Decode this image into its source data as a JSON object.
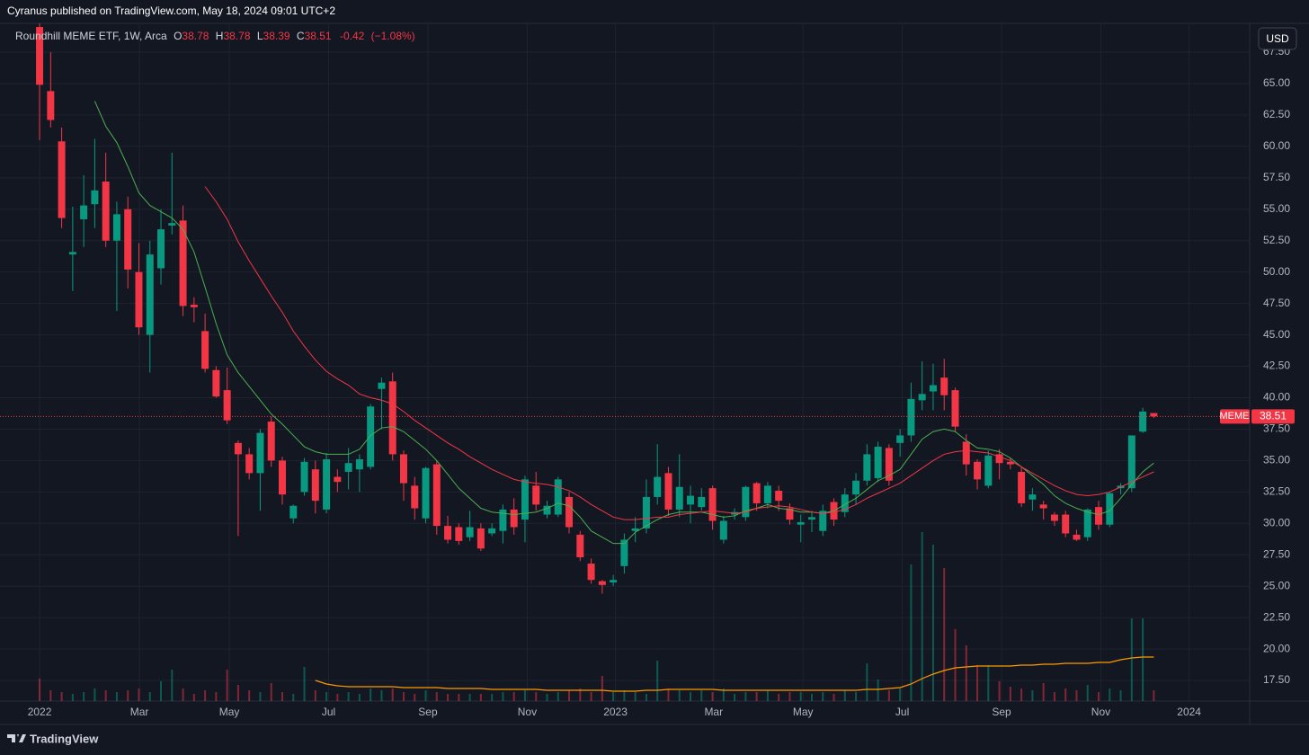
{
  "header": "Cyranus published on TradingView.com, May 18, 2024 09:01 UTC+2",
  "footer": "TradingView",
  "currency_button": "USD",
  "chart_data": {
    "type": "candlestick",
    "symbol": "MEME",
    "legend_name": "Roundhill MEME ETF, 1W, Arca",
    "legend_letters": [
      "O",
      "H",
      "L",
      "C"
    ],
    "change": -0.42,
    "change_pct": {
      "value": -1.08,
      "label": "(−1.08%)"
    },
    "up_color": "#089981",
    "down_color": "#f23645",
    "grid": true,
    "categories": [
      null,
      null,
      null,
      null,
      null,
      null,
      null,
      null,
      null,
      null,
      null,
      null,
      null,
      null,
      null,
      null,
      null,
      null,
      null,
      null,
      null,
      null,
      null,
      null,
      null,
      null,
      null,
      null,
      null,
      null,
      null,
      null,
      null,
      null,
      null,
      null,
      null,
      null,
      null,
      null,
      null,
      null,
      null,
      null,
      null,
      null,
      null,
      null,
      null,
      null,
      null,
      null,
      null,
      null,
      null,
      null,
      null,
      null,
      null,
      null,
      null,
      null,
      null,
      null,
      null,
      null,
      null,
      null,
      null,
      null,
      null,
      null,
      null,
      null,
      null,
      null,
      null,
      null,
      null,
      null,
      null,
      null,
      null,
      null,
      null,
      null,
      null,
      null,
      null,
      null,
      null,
      null,
      null,
      null,
      null,
      null,
      null,
      null,
      null,
      null,
      null,
      null
    ],
    "open": [
      69.5,
      64.4,
      60.4,
      51.4,
      54.2,
      55.4,
      57.2,
      52.5,
      55.0,
      50.0,
      45.0,
      50.3,
      53.7,
      54.1,
      47.4,
      45.3,
      42.2,
      40.6,
      36.4,
      35.5,
      34.0,
      38.1,
      35.0,
      30.4,
      32.5,
      34.3,
      31.1,
      33.7,
      34.1,
      34.3,
      34.5,
      40.7,
      41.3,
      35.5,
      33.0,
      30.4,
      34.7,
      29.8,
      29.7,
      28.9,
      29.6,
      29.2,
      29.4,
      31.1,
      30.3,
      33.0,
      30.7,
      30.7,
      32.1,
      29.1,
      26.8,
      25.4,
      25.3,
      26.6,
      29.4,
      29.6,
      32.1,
      34.0,
      31.1,
      31.5,
      31.3,
      32.8,
      28.7,
      30.7,
      30.5,
      33.2,
      31.6,
      32.6,
      31.2,
      29.9,
      30.3,
      29.4,
      31.7,
      30.9,
      32.3,
      33.4,
      33.6,
      36.0,
      36.4,
      37.0,
      39.8,
      40.5,
      41.6,
      40.6,
      36.5,
      34.9,
      33.0,
      35.5,
      34.9,
      34.1,
      31.9,
      31.5,
      30.7,
      30.7,
      29.1,
      28.9,
      31.3,
      29.9,
      32.8,
      32.8,
      37.3,
      38.78
    ],
    "high": [
      72,
      67.5,
      61.5,
      55.2,
      57.7,
      60.6,
      59.5,
      55.6,
      56.0,
      52.3,
      52.5,
      55.0,
      59.5,
      55.3,
      48.0,
      46.7,
      42.5,
      42.4,
      36.6,
      36.0,
      37.5,
      38.5,
      35.3,
      31.5,
      35.2,
      35.0,
      35.6,
      34.3,
      36.0,
      35.5,
      39.5,
      41.6,
      42.0,
      35.8,
      33.7,
      34.5,
      35.0,
      30.6,
      30.0,
      31.0,
      30.0,
      30.0,
      31.5,
      32.0,
      33.8,
      34.1,
      31.8,
      33.7,
      32.5,
      29.4,
      27.2,
      25.5,
      25.9,
      29.2,
      30.5,
      33.5,
      36.3,
      34.5,
      35.5,
      33.0,
      32.8,
      33.0,
      30.6,
      31.2,
      33.0,
      33.3,
      33.3,
      33.0,
      31.6,
      30.7,
      31.0,
      31.5,
      32.0,
      32.8,
      34.0,
      36.3,
      36.5,
      36.3,
      37.5,
      41.2,
      42.9,
      42.7,
      43.1,
      40.8,
      37.1,
      35.1,
      35.8,
      35.9,
      35.2,
      34.5,
      32.8,
      31.8,
      30.9,
      31.0,
      29.5,
      31.2,
      31.8,
      32.5,
      33.2,
      37.0,
      39.2,
      38.78
    ],
    "low": [
      60.5,
      61.5,
      53.5,
      48.5,
      52.0,
      53.5,
      52.0,
      46.9,
      48.7,
      45.0,
      42.0,
      49.0,
      53.0,
      46.5,
      46.0,
      42.0,
      40.0,
      37.9,
      29.0,
      33.5,
      31.0,
      34.5,
      31.5,
      30.0,
      32.2,
      30.8,
      30.8,
      32.5,
      32.7,
      32.5,
      34.3,
      37.5,
      35.0,
      31.8,
      30.3,
      30.0,
      29.1,
      28.4,
      28.3,
      28.6,
      27.8,
      29.0,
      28.4,
      29.1,
      28.5,
      31.0,
      30.4,
      30.5,
      29.2,
      27.0,
      25.2,
      24.4,
      25.0,
      26.0,
      28.5,
      29.2,
      31.5,
      30.6,
      30.5,
      30.0,
      31.0,
      29.5,
      28.4,
      30.3,
      30.2,
      31.0,
      31.2,
      31.0,
      29.9,
      28.5,
      29.3,
      29.0,
      29.8,
      30.5,
      31.5,
      33.0,
      33.3,
      33.0,
      35.3,
      36.5,
      39.0,
      39.0,
      39.0,
      37.3,
      33.8,
      32.7,
      32.8,
      33.5,
      34.3,
      31.3,
      31.0,
      30.3,
      29.8,
      28.9,
      28.6,
      28.6,
      29.5,
      29.7,
      32.3,
      32.5,
      37.2,
      38.39
    ],
    "close": [
      64.9,
      62.1,
      54.3,
      51.6,
      55.3,
      56.5,
      52.5,
      54.6,
      50.2,
      45.6,
      51.4,
      53.4,
      53.9,
      47.3,
      47.2,
      42.3,
      40.1,
      38.2,
      35.5,
      34.0,
      37.2,
      35.0,
      32.3,
      31.4,
      34.9,
      31.8,
      35.1,
      33.3,
      34.8,
      35.1,
      39.3,
      41.2,
      35.5,
      33.2,
      31.2,
      34.4,
      29.8,
      28.7,
      28.6,
      29.7,
      28.0,
      29.6,
      31.1,
      29.7,
      33.5,
      31.5,
      31.4,
      33.5,
      29.7,
      27.3,
      25.5,
      25.1,
      25.5,
      28.7,
      29.6,
      32.1,
      33.7,
      31.1,
      32.9,
      32.2,
      32.1,
      30.2,
      30.2,
      30.9,
      32.9,
      31.6,
      33.0,
      31.8,
      30.3,
      30.1,
      30.5,
      31.0,
      30.3,
      32.3,
      33.4,
      35.5,
      36.1,
      33.4,
      37.0,
      39.9,
      40.3,
      41.0,
      40.2,
      37.7,
      34.7,
      33.5,
      35.4,
      34.8,
      34.7,
      31.6,
      32.3,
      31.2,
      30.2,
      29.2,
      28.7,
      31.1,
      29.9,
      32.4,
      33.0,
      37.0,
      38.9,
      38.51
    ],
    "series": [
      {
        "color": "#4caf50",
        "values": [
          null,
          null,
          null,
          null,
          null,
          63.6,
          61.6,
          60.3,
          58.4,
          56.3,
          55.3,
          54.8,
          54.3,
          53.4,
          51.6,
          48.8,
          45.9,
          43.4,
          42.0,
          40.9,
          39.8,
          38.7,
          37.9,
          37.0,
          36.1,
          35.7,
          35.5,
          35.5,
          35.5,
          35.9,
          37.0,
          37.6,
          37.7,
          37.3,
          36.6,
          35.9,
          35.0,
          33.9,
          32.8,
          32.0,
          31.2,
          30.9,
          30.8,
          30.7,
          30.8,
          30.9,
          31.2,
          31.6,
          31.4,
          30.5,
          29.4,
          28.9,
          28.4,
          28.4,
          29.3,
          29.8,
          30.3,
          30.7,
          30.9,
          30.9,
          30.9,
          30.7,
          30.5,
          30.6,
          31.0,
          31.2,
          31.5,
          31.2,
          31.1,
          30.9,
          30.9,
          30.8,
          31.0,
          31.5,
          32.0,
          32.7,
          33.4,
          33.8,
          34.3,
          35.5,
          36.7,
          37.3,
          37.5,
          37.3,
          36.6,
          36.0,
          35.9,
          35.7,
          35.2,
          34.5,
          33.8,
          33.1,
          32.2,
          31.6,
          31.2,
          30.9,
          30.7,
          31.0,
          32.0,
          33.1,
          34.1,
          34.8
        ]
      },
      {
        "color": "#f23645",
        "values": [
          null,
          null,
          null,
          null,
          null,
          null,
          null,
          null,
          null,
          null,
          null,
          null,
          null,
          null,
          null,
          56.8,
          55.6,
          54.2,
          52.4,
          50.9,
          49.5,
          48.1,
          46.8,
          45.3,
          44.1,
          43.0,
          42.1,
          41.5,
          41.0,
          40.3,
          40.0,
          39.8,
          39.5,
          38.9,
          38.2,
          37.6,
          37.0,
          36.4,
          35.9,
          35.3,
          34.8,
          34.3,
          33.9,
          33.5,
          33.3,
          33.2,
          33.1,
          32.9,
          32.6,
          32.1,
          31.5,
          31.0,
          30.5,
          30.3,
          30.3,
          30.4,
          30.5,
          30.5,
          30.7,
          30.8,
          30.9,
          31.0,
          30.9,
          30.8,
          30.9,
          31.2,
          31.3,
          31.4,
          31.3,
          31.1,
          30.9,
          30.8,
          30.9,
          31.1,
          31.5,
          32.0,
          32.4,
          32.8,
          33.2,
          33.8,
          34.4,
          35.0,
          35.5,
          35.7,
          35.8,
          35.7,
          35.6,
          35.3,
          35.0,
          34.5,
          34.0,
          33.5,
          33.0,
          32.6,
          32.3,
          32.2,
          32.3,
          32.5,
          32.9,
          33.3,
          33.7,
          34.1
        ]
      }
    ],
    "volume": [
      25,
      12,
      10,
      8,
      10,
      14,
      12,
      10,
      12,
      14,
      10,
      22,
      35,
      14,
      8,
      12,
      10,
      35,
      18,
      12,
      10,
      20,
      10,
      8,
      38,
      12,
      10,
      8,
      10,
      8,
      14,
      12,
      14,
      10,
      8,
      12,
      10,
      8,
      8,
      8,
      8,
      8,
      10,
      10,
      12,
      10,
      8,
      10,
      12,
      14,
      10,
      28,
      10,
      12,
      10,
      8,
      45,
      14,
      12,
      10,
      12,
      10,
      14,
      8,
      10,
      10,
      12,
      8,
      10,
      10,
      8,
      10,
      8,
      12,
      10,
      42,
      24,
      12,
      14,
      152,
      188,
      174,
      148,
      80,
      62,
      40,
      40,
      22,
      16,
      14,
      12,
      20,
      10,
      14,
      12,
      18,
      10,
      14,
      12,
      92,
      92,
      12
    ],
    "volume_lim": [
      0,
      230
    ],
    "volume_ma": {
      "color": "#ff9800",
      "values": [
        null,
        null,
        null,
        null,
        null,
        null,
        null,
        null,
        null,
        null,
        null,
        null,
        null,
        null,
        null,
        null,
        null,
        null,
        null,
        null,
        null,
        null,
        null,
        null,
        null,
        23,
        19,
        17,
        16,
        16,
        16,
        16,
        16,
        15,
        15,
        15,
        15,
        14,
        14,
        14,
        14,
        13,
        13,
        13,
        13,
        13,
        12,
        12,
        12,
        12,
        12,
        12,
        11,
        11,
        11,
        12,
        12,
        13,
        13,
        13,
        13,
        13,
        12,
        12,
        12,
        12,
        12,
        12,
        12,
        12,
        12,
        12,
        12,
        12,
        12,
        13,
        13,
        14,
        15,
        19,
        25,
        30,
        34,
        37,
        38,
        39,
        39,
        39,
        39,
        40,
        40,
        41,
        41,
        42,
        42,
        42,
        43,
        43,
        46,
        48,
        49,
        49
      ]
    },
    "xlim": [
      -3.59,
      109.69
    ],
    "xticks": [
      {
        "value": 0,
        "label": "2022"
      },
      {
        "value": 9.05,
        "label": "Mar"
      },
      {
        "value": 17.2,
        "label": "May"
      },
      {
        "value": 26.2,
        "label": "Jul"
      },
      {
        "value": 35.2,
        "label": "Sep"
      },
      {
        "value": 44.2,
        "label": "Nov"
      },
      {
        "value": 52.2,
        "label": "2023"
      },
      {
        "value": 61.1,
        "label": "Mar"
      },
      {
        "value": 69.2,
        "label": "May"
      },
      {
        "value": 78.2,
        "label": "Jul"
      },
      {
        "value": 87.2,
        "label": "Sep"
      },
      {
        "value": 96.2,
        "label": "Nov"
      },
      {
        "value": 104.2,
        "label": "2024"
      }
    ],
    "ylim": [
      15.86,
      69.79
    ],
    "yticks": [
      {
        "value": 17.5,
        "label": "17.50"
      },
      {
        "value": 20,
        "label": "20.00"
      },
      {
        "value": 22.5,
        "label": "22.50"
      },
      {
        "value": 25,
        "label": "25.00"
      },
      {
        "value": 27.5,
        "label": "27.50"
      },
      {
        "value": 30,
        "label": "30.00"
      },
      {
        "value": 32.5,
        "label": "32.50"
      },
      {
        "value": 35,
        "label": "35.00"
      },
      {
        "value": 37.5,
        "label": "37.50"
      },
      {
        "value": 40,
        "label": "40.00"
      },
      {
        "value": 42.5,
        "label": "42.50"
      },
      {
        "value": 45,
        "label": "45.00"
      },
      {
        "value": 47.5,
        "label": "47.50"
      },
      {
        "value": 50,
        "label": "50.00"
      },
      {
        "value": 52.5,
        "label": "52.50"
      },
      {
        "value": 55,
        "label": "55.00"
      },
      {
        "value": 57.5,
        "label": "57.50"
      },
      {
        "value": 60,
        "label": "60.00"
      },
      {
        "value": 62.5,
        "label": "62.50"
      },
      {
        "value": 65,
        "label": "65.00"
      },
      {
        "value": 67.5,
        "label": "67.50"
      }
    ]
  }
}
